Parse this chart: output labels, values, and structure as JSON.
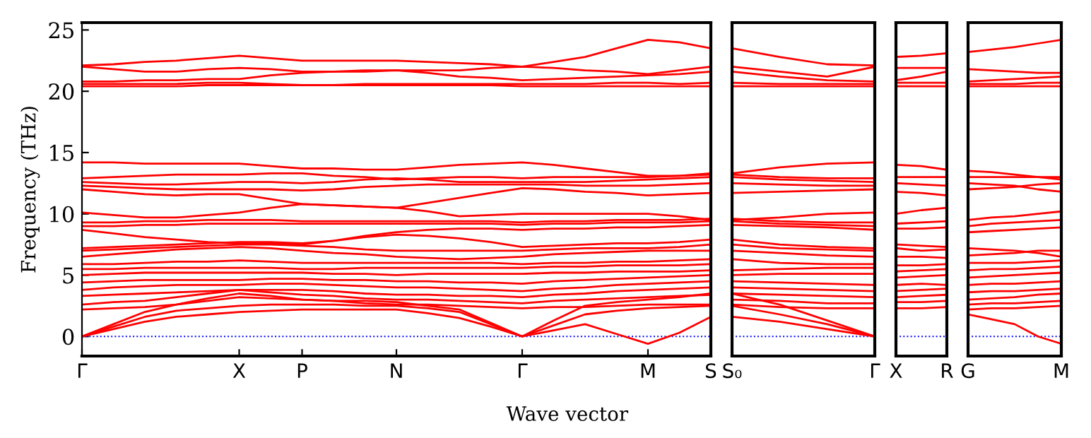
{
  "chart_data": [
    {
      "type": "line",
      "ylabel": "Frequency (THz)",
      "xlabel": "Wave vector",
      "color": "#ff0000",
      "ylim": [
        -1.6,
        25.6
      ],
      "yticks": [
        0,
        5,
        10,
        15,
        20,
        25
      ],
      "categories": [
        "Γ",
        null,
        null,
        null,
        null,
        "X",
        null,
        "P",
        null,
        null,
        "N",
        null,
        null,
        null,
        "Γ",
        null,
        null,
        null,
        "M",
        null,
        "S"
      ],
      "ref_lines": [
        {
          "axis": "y",
          "value": 0,
          "color": "#0000ff",
          "line_style": "dotted"
        }
      ],
      "series": [
        {
          "values": [
            0,
            0.6,
            1.2,
            1.6,
            1.8,
            2.0,
            2.1,
            2.2,
            2.2,
            2.2,
            2.2,
            1.9,
            1.5,
            0.8,
            0,
            0.5,
            1.0,
            0.2,
            -0.6,
            0.3,
            1.6
          ]
        },
        {
          "values": [
            0,
            0.8,
            1.6,
            2.1,
            2.3,
            2.5,
            2.6,
            2.6,
            2.6,
            2.5,
            2.5,
            2.3,
            2.0,
            1.0,
            0,
            0.9,
            1.8,
            2.1,
            2.3,
            2.4,
            2.5
          ]
        },
        {
          "values": [
            0,
            1.0,
            2.0,
            2.6,
            2.9,
            3.2,
            3.1,
            3.0,
            2.9,
            2.9,
            2.8,
            2.5,
            2.2,
            1.1,
            0,
            1.3,
            2.5,
            2.8,
            3.0,
            3.2,
            3.5
          ]
        },
        {
          "values": [
            2.2,
            2.3,
            2.4,
            2.6,
            3.1,
            3.5,
            3.3,
            3.0,
            2.9,
            2.7,
            2.6,
            2.6,
            2.5,
            2.4,
            2.3,
            2.4,
            2.4,
            2.5,
            2.6,
            2.6,
            2.6
          ]
        },
        {
          "values": [
            2.6,
            2.8,
            2.9,
            3.2,
            3.5,
            3.8,
            3.6,
            3.4,
            3.3,
            3.1,
            3.0,
            3.0,
            2.9,
            2.8,
            2.7,
            2.9,
            3.0,
            3.1,
            3.2,
            3.3,
            3.4
          ]
        },
        {
          "values": [
            3.3,
            3.4,
            3.5,
            3.6,
            3.7,
            3.8,
            3.8,
            3.8,
            3.7,
            3.5,
            3.4,
            3.4,
            3.3,
            3.3,
            3.2,
            3.4,
            3.5,
            3.7,
            3.8,
            3.9,
            4.0
          ]
        },
        {
          "values": [
            3.8,
            4.0,
            4.1,
            4.2,
            4.2,
            4.2,
            4.3,
            4.3,
            4.2,
            4.1,
            4.0,
            4.0,
            3.9,
            3.8,
            3.7,
            3.9,
            4.0,
            4.2,
            4.3,
            4.4,
            4.5
          ]
        },
        {
          "values": [
            4.4,
            4.5,
            4.6,
            4.6,
            4.6,
            4.6,
            4.7,
            4.7,
            4.6,
            4.6,
            4.5,
            4.5,
            4.4,
            4.4,
            4.3,
            4.5,
            4.6,
            4.7,
            4.8,
            4.9,
            5.0
          ]
        },
        {
          "values": [
            5.0,
            5.1,
            5.2,
            5.2,
            5.2,
            5.2,
            5.2,
            5.2,
            5.1,
            5.1,
            5.0,
            5.1,
            5.1,
            5.1,
            5.1,
            5.2,
            5.2,
            5.3,
            5.3,
            5.3,
            5.4
          ]
        },
        {
          "values": [
            5.5,
            5.5,
            5.6,
            5.6,
            5.6,
            5.6,
            5.6,
            5.5,
            5.5,
            5.6,
            5.6,
            5.6,
            5.6,
            5.6,
            5.6,
            5.7,
            5.7,
            5.8,
            5.8,
            5.8,
            5.9
          ]
        },
        {
          "values": [
            5.9,
            5.9,
            6.0,
            6.1,
            6.1,
            6.2,
            6.1,
            6.0,
            6.0,
            6.0,
            6.0,
            6.0,
            6.0,
            6.0,
            5.9,
            6.0,
            6.0,
            6.1,
            6.1,
            6.2,
            6.3
          ]
        },
        {
          "values": [
            6.5,
            6.7,
            6.9,
            7.1,
            7.2,
            7.3,
            7.2,
            7.0,
            6.8,
            6.7,
            6.5,
            6.4,
            6.3,
            6.4,
            6.5,
            6.7,
            6.8,
            6.9,
            7.0,
            7.0,
            7.0
          ]
        },
        {
          "values": [
            7.0,
            7.1,
            7.2,
            7.3,
            7.4,
            7.5,
            7.5,
            7.4,
            7.3,
            7.1,
            7.0,
            7.0,
            7.0,
            7.0,
            7.0,
            7.1,
            7.2,
            7.2,
            7.2,
            7.3,
            7.5
          ]
        },
        {
          "values": [
            7.2,
            7.3,
            7.4,
            7.5,
            7.6,
            7.7,
            7.7,
            7.6,
            7.8,
            8.1,
            8.3,
            8.2,
            8.0,
            7.7,
            7.3,
            7.4,
            7.5,
            7.6,
            7.6,
            7.7,
            7.9
          ]
        },
        {
          "values": [
            8.7,
            8.4,
            8.1,
            7.9,
            7.7,
            7.6,
            7.6,
            7.5,
            7.8,
            8.2,
            8.5,
            8.7,
            8.8,
            8.8,
            8.7,
            8.8,
            8.8,
            8.9,
            8.9,
            9.0,
            9.1
          ]
        },
        {
          "values": [
            9.0,
            9.0,
            9.1,
            9.1,
            9.2,
            9.2,
            9.2,
            9.2,
            9.2,
            9.2,
            9.2,
            9.2,
            9.2,
            9.2,
            9.1,
            9.2,
            9.2,
            9.3,
            9.3,
            9.3,
            9.4
          ]
        },
        {
          "values": [
            9.3,
            9.3,
            9.4,
            9.4,
            9.5,
            9.5,
            9.5,
            9.4,
            9.4,
            9.4,
            9.4,
            9.4,
            9.4,
            9.4,
            9.3,
            9.4,
            9.4,
            9.5,
            9.5,
            9.5,
            9.6
          ]
        },
        {
          "values": [
            10.1,
            9.9,
            9.7,
            9.7,
            9.9,
            10.1,
            10.5,
            10.8,
            10.7,
            10.6,
            10.5,
            10.2,
            9.8,
            9.9,
            10.0,
            10.0,
            10.0,
            10.0,
            10.0,
            9.8,
            9.5
          ]
        },
        {
          "values": [
            12.0,
            11.8,
            11.6,
            11.5,
            11.6,
            11.6,
            11.2,
            10.8,
            10.7,
            10.6,
            10.5,
            10.9,
            11.3,
            11.7,
            12.1,
            12.0,
            11.8,
            11.7,
            11.5,
            11.6,
            11.7
          ]
        },
        {
          "values": [
            12.3,
            12.2,
            12.1,
            12.0,
            12.0,
            12.0,
            12.0,
            11.9,
            12.0,
            12.2,
            12.3,
            12.4,
            12.4,
            12.4,
            12.4,
            12.4,
            12.3,
            12.3,
            12.3,
            12.4,
            12.5
          ]
        },
        {
          "values": [
            12.6,
            12.5,
            12.4,
            12.4,
            12.5,
            12.6,
            12.6,
            12.5,
            12.6,
            12.8,
            12.9,
            12.8,
            12.6,
            12.6,
            12.6,
            12.6,
            12.6,
            12.7,
            12.8,
            12.9,
            13.0
          ]
        },
        {
          "values": [
            12.9,
            13.0,
            13.1,
            13.2,
            13.2,
            13.2,
            13.3,
            13.3,
            13.1,
            13.0,
            12.8,
            12.9,
            13.0,
            13.0,
            12.9,
            13.0,
            13.0,
            13.0,
            13.0,
            13.1,
            13.2
          ]
        },
        {
          "values": [
            14.2,
            14.2,
            14.1,
            14.1,
            14.1,
            14.1,
            13.9,
            13.7,
            13.7,
            13.6,
            13.6,
            13.8,
            14.0,
            14.1,
            14.2,
            14.0,
            13.7,
            13.4,
            13.1,
            13.1,
            13.3
          ]
        },
        {
          "values": [
            20.4,
            20.4,
            20.4,
            20.4,
            20.5,
            20.5,
            20.5,
            20.5,
            20.5,
            20.5,
            20.5,
            20.5,
            20.5,
            20.5,
            20.4,
            20.4,
            20.4,
            20.4,
            20.4,
            20.4,
            20.4
          ]
        },
        {
          "values": [
            20.6,
            20.6,
            20.6,
            20.6,
            20.7,
            20.7,
            20.6,
            20.5,
            20.5,
            20.6,
            20.6,
            20.6,
            20.6,
            20.6,
            20.6,
            20.6,
            20.6,
            20.7,
            20.7,
            20.6,
            20.7
          ]
        },
        {
          "values": [
            20.8,
            20.8,
            20.9,
            20.9,
            21.0,
            21.0,
            21.3,
            21.5,
            21.6,
            21.6,
            21.7,
            21.5,
            21.2,
            21.1,
            20.9,
            21.0,
            21.1,
            21.2,
            21.3,
            21.4,
            21.6
          ]
        },
        {
          "values": [
            22.0,
            21.8,
            21.6,
            21.6,
            21.8,
            21.9,
            21.8,
            21.6,
            21.6,
            21.7,
            21.7,
            21.7,
            21.7,
            21.9,
            22.0,
            21.9,
            21.7,
            21.6,
            21.4,
            21.7,
            22.0
          ]
        },
        {
          "values": [
            22.1,
            22.2,
            22.4,
            22.5,
            22.7,
            22.9,
            22.7,
            22.5,
            22.5,
            22.5,
            22.5,
            22.4,
            22.3,
            22.2,
            22.0,
            22.4,
            22.8,
            23.5,
            24.2,
            24.0,
            23.5
          ]
        }
      ]
    },
    {
      "type": "line",
      "color": "#ff0000",
      "ylim": [
        -1.6,
        25.6
      ],
      "yticks": [
        0,
        5,
        10,
        15,
        20,
        25
      ],
      "tick_labels": "x",
      "categories": [
        "S₀",
        null,
        null,
        "Γ"
      ],
      "ref_lines": [
        {
          "axis": "y",
          "value": 0,
          "color": "#0000ff",
          "line_style": "dotted"
        }
      ],
      "series": [
        {
          "values": [
            1.6,
            1.2,
            0.6,
            0
          ]
        },
        {
          "values": [
            2.5,
            1.8,
            1.0,
            0
          ]
        },
        {
          "values": [
            3.5,
            2.6,
            1.3,
            0
          ]
        },
        {
          "values": [
            2.6,
            2.4,
            2.3,
            2.3
          ]
        },
        {
          "values": [
            3.0,
            2.9,
            2.7,
            2.7
          ]
        },
        {
          "values": [
            3.5,
            3.4,
            3.3,
            3.2
          ]
        },
        {
          "values": [
            4.0,
            3.9,
            3.8,
            3.7
          ]
        },
        {
          "values": [
            4.5,
            4.4,
            4.3,
            4.2
          ]
        },
        {
          "values": [
            5.0,
            5.1,
            5.1,
            5.1
          ]
        },
        {
          "values": [
            5.4,
            5.5,
            5.6,
            5.6
          ]
        },
        {
          "values": [
            6.3,
            6.0,
            5.9,
            5.9
          ]
        },
        {
          "values": [
            7.0,
            6.8,
            6.6,
            6.5
          ]
        },
        {
          "values": [
            7.5,
            7.2,
            7.1,
            7.0
          ]
        },
        {
          "values": [
            7.9,
            7.5,
            7.3,
            7.2
          ]
        },
        {
          "values": [
            9.1,
            9.0,
            8.9,
            8.7
          ]
        },
        {
          "values": [
            9.4,
            9.2,
            9.1,
            9.0
          ]
        },
        {
          "values": [
            9.6,
            9.4,
            9.3,
            9.3
          ]
        },
        {
          "values": [
            9.5,
            9.7,
            10.0,
            10.1
          ]
        },
        {
          "values": [
            11.7,
            11.8,
            11.9,
            12.0
          ]
        },
        {
          "values": [
            12.5,
            12.4,
            12.3,
            12.3
          ]
        },
        {
          "values": [
            13.0,
            12.8,
            12.7,
            12.6
          ]
        },
        {
          "values": [
            13.2,
            13.0,
            12.9,
            12.9
          ]
        },
        {
          "values": [
            13.3,
            13.8,
            14.1,
            14.2
          ]
        },
        {
          "values": [
            20.4,
            20.4,
            20.4,
            20.4
          ]
        },
        {
          "values": [
            20.7,
            20.6,
            20.6,
            20.6
          ]
        },
        {
          "values": [
            21.6,
            21.2,
            20.9,
            20.8
          ]
        },
        {
          "values": [
            22.0,
            21.6,
            21.2,
            22.0
          ]
        },
        {
          "values": [
            23.5,
            22.8,
            22.2,
            22.1
          ]
        }
      ]
    },
    {
      "type": "line",
      "color": "#ff0000",
      "ylim": [
        -1.6,
        25.6
      ],
      "yticks": [
        0,
        5,
        10,
        15,
        20,
        25
      ],
      "tick_labels": "x",
      "categories": [
        "X",
        null,
        "R"
      ],
      "ref_lines": [
        {
          "axis": "y",
          "value": 0,
          "color": "#0000ff",
          "line_style": "dotted"
        }
      ],
      "series": [
        {
          "values": [
            2.3,
            2.3,
            2.4
          ]
        },
        {
          "values": [
            2.8,
            2.8,
            2.9
          ]
        },
        {
          "values": [
            3.2,
            3.3,
            3.4
          ]
        },
        {
          "values": [
            3.7,
            3.8,
            3.9
          ]
        },
        {
          "values": [
            4.2,
            4.3,
            4.2
          ]
        },
        {
          "values": [
            4.8,
            4.9,
            5.0
          ]
        },
        {
          "values": [
            5.3,
            5.4,
            5.5
          ]
        },
        {
          "values": [
            5.8,
            5.8,
            5.9
          ]
        },
        {
          "values": [
            6.5,
            6.5,
            6.4
          ]
        },
        {
          "values": [
            7.2,
            7.0,
            7.1
          ]
        },
        {
          "values": [
            7.5,
            7.4,
            7.3
          ]
        },
        {
          "values": [
            8.8,
            8.8,
            8.9
          ]
        },
        {
          "values": [
            9.2,
            9.3,
            9.4
          ]
        },
        {
          "values": [
            10.0,
            10.3,
            10.5
          ]
        },
        {
          "values": [
            11.8,
            11.7,
            11.5
          ]
        },
        {
          "values": [
            12.5,
            12.4,
            12.3
          ]
        },
        {
          "values": [
            13.0,
            13.0,
            13.0
          ]
        },
        {
          "values": [
            14.0,
            13.9,
            13.6
          ]
        },
        {
          "values": [
            20.4,
            20.4,
            20.4
          ]
        },
        {
          "values": [
            20.7,
            20.7,
            20.7
          ]
        },
        {
          "values": [
            20.9,
            21.2,
            21.6
          ]
        },
        {
          "values": [
            21.9,
            21.9,
            21.9
          ]
        },
        {
          "values": [
            22.8,
            22.9,
            23.1
          ]
        }
      ]
    },
    {
      "type": "line",
      "color": "#ff0000",
      "ylim": [
        -1.6,
        25.6
      ],
      "yticks": [
        0,
        5,
        10,
        15,
        20,
        25
      ],
      "tick_labels": "x",
      "categories": [
        "G",
        null,
        null,
        null,
        "M"
      ],
      "ref_lines": [
        {
          "axis": "y",
          "value": 0,
          "color": "#0000ff",
          "line_style": "dotted"
        }
      ],
      "series": [
        {
          "values": [
            1.8,
            1.4,
            1.0,
            0.0,
            -0.6
          ]
        },
        {
          "values": [
            2.2,
            2.3,
            2.3,
            2.4,
            2.5
          ]
        },
        {
          "values": [
            2.6,
            2.7,
            2.7,
            2.8,
            2.9
          ]
        },
        {
          "values": [
            3.0,
            3.1,
            3.2,
            3.4,
            3.5
          ]
        },
        {
          "values": [
            3.6,
            3.7,
            3.7,
            3.8,
            3.9
          ]
        },
        {
          "values": [
            4.2,
            4.3,
            4.3,
            4.4,
            4.5
          ]
        },
        {
          "values": [
            4.8,
            4.9,
            5.0,
            5.1,
            5.2
          ]
        },
        {
          "values": [
            5.4,
            5.5,
            5.5,
            5.6,
            5.7
          ]
        },
        {
          "values": [
            6.0,
            6.0,
            6.0,
            6.1,
            6.2
          ]
        },
        {
          "values": [
            6.6,
            6.7,
            6.8,
            7.0,
            7.0
          ]
        },
        {
          "values": [
            7.2,
            7.1,
            7.0,
            6.8,
            6.5
          ]
        },
        {
          "values": [
            8.5,
            8.6,
            8.7,
            8.8,
            8.9
          ]
        },
        {
          "values": [
            9.0,
            9.2,
            9.3,
            9.4,
            9.5
          ]
        },
        {
          "values": [
            9.5,
            9.7,
            9.8,
            10.0,
            10.2
          ]
        },
        {
          "values": [
            12.0,
            12.1,
            12.2,
            12.4,
            12.5
          ]
        },
        {
          "values": [
            12.5,
            12.4,
            12.3,
            12.0,
            11.8
          ]
        },
        {
          "values": [
            13.0,
            13.0,
            13.0,
            13.0,
            13.0
          ]
        },
        {
          "values": [
            13.5,
            13.4,
            13.2,
            13.0,
            12.8
          ]
        },
        {
          "values": [
            20.4,
            20.4,
            20.4,
            20.4,
            20.4
          ]
        },
        {
          "values": [
            20.6,
            20.6,
            20.6,
            20.7,
            20.7
          ]
        },
        {
          "values": [
            20.8,
            20.9,
            21.0,
            21.1,
            21.2
          ]
        },
        {
          "values": [
            21.8,
            21.7,
            21.6,
            21.5,
            21.5
          ]
        },
        {
          "values": [
            23.2,
            23.4,
            23.6,
            23.9,
            24.2
          ]
        }
      ]
    }
  ]
}
